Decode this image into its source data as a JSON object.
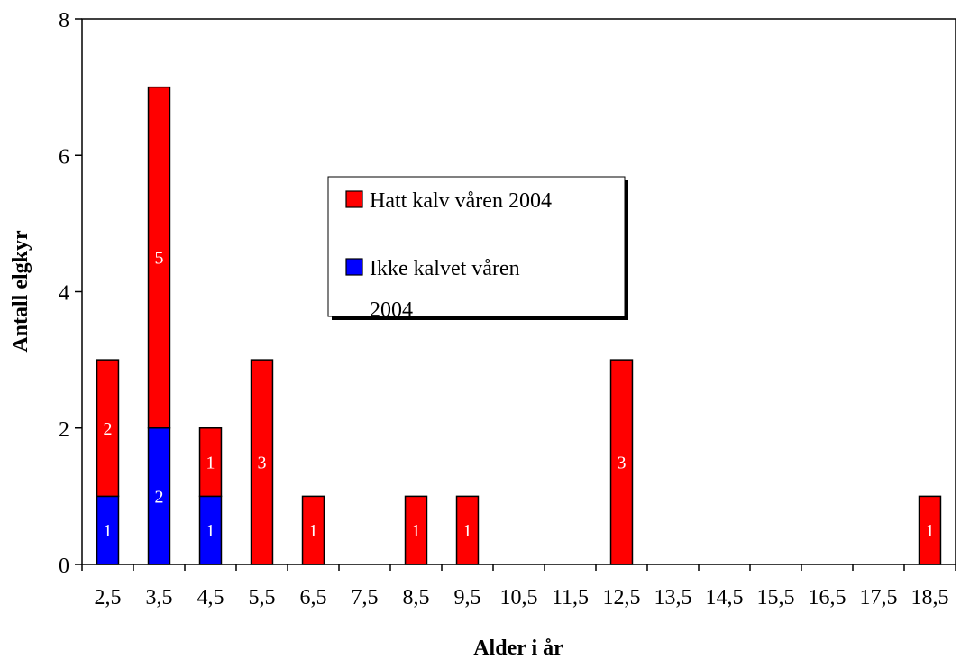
{
  "chart_data": {
    "type": "bar",
    "stacked": true,
    "categories": [
      "2,5",
      "3,5",
      "4,5",
      "5,5",
      "6,5",
      "7,5",
      "8,5",
      "9,5",
      "10,5",
      "11,5",
      "12,5",
      "13,5",
      "14,5",
      "15,5",
      "16,5",
      "17,5",
      "18,5"
    ],
    "series": [
      {
        "name": "Ikke kalvet våren 2004",
        "color": "#0000FF",
        "values": [
          1,
          2,
          1,
          0,
          0,
          0,
          0,
          0,
          0,
          0,
          0,
          0,
          0,
          0,
          0,
          0,
          0
        ]
      },
      {
        "name": "Hatt kalv våren 2004",
        "color": "#FF0000",
        "values": [
          2,
          5,
          1,
          3,
          1,
          0,
          1,
          1,
          0,
          0,
          3,
          0,
          0,
          0,
          0,
          0,
          1
        ]
      }
    ],
    "xlabel": "Alder i år",
    "ylabel": "Antall elgkyr",
    "ylim": [
      0,
      8
    ],
    "yticks": [
      "0",
      "2",
      "4",
      "6",
      "8"
    ],
    "legend": {
      "placement": "center",
      "entries": [
        {
          "label_lines": [
            "Hatt kalv våren 2004"
          ],
          "color": "#FF0000"
        },
        {
          "label_lines": [
            "Ikke kalvet våren",
            "2004"
          ],
          "color": "#0000FF"
        }
      ]
    },
    "grid": false
  }
}
